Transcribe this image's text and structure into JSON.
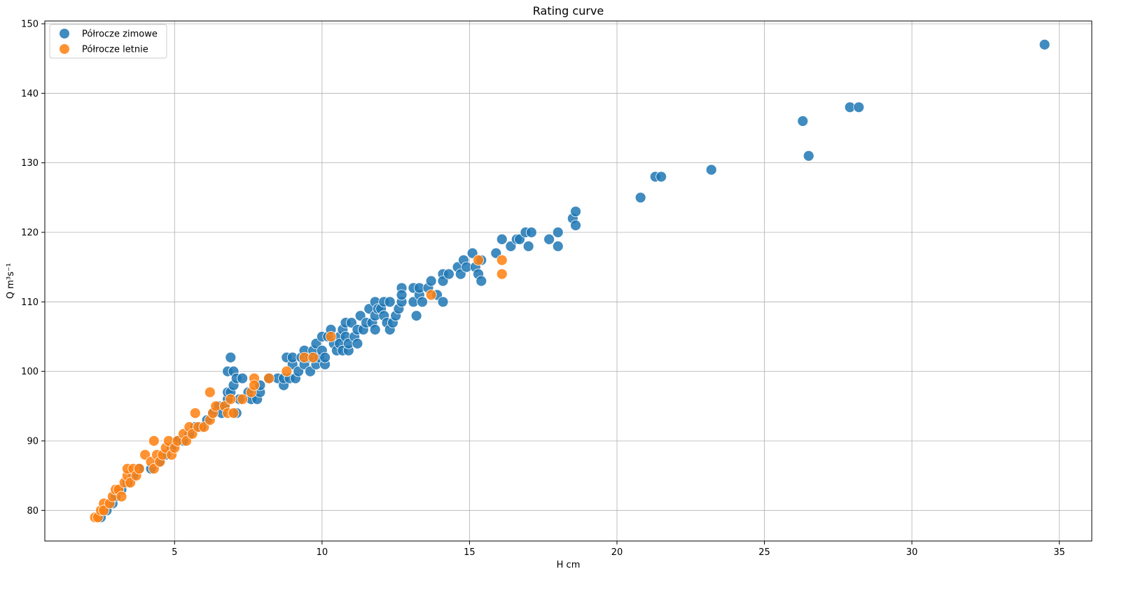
{
  "chart_data": {
    "type": "scatter",
    "title": "Rating curve",
    "xlabel": "H cm",
    "ylabel": "Q m³s⁻¹",
    "xlim": [
      0.6,
      36.1
    ],
    "ylim": [
      75.6,
      150.4
    ],
    "xticks": [
      5,
      10,
      15,
      20,
      25,
      30,
      35
    ],
    "yticks": [
      80,
      90,
      100,
      110,
      120,
      130,
      140,
      150
    ],
    "grid": true,
    "legend_position": "top-left",
    "series": [
      {
        "name": "Półrocze zimowe",
        "color": "#1f77b4",
        "points": [
          [
            2.5,
            79
          ],
          [
            2.7,
            80
          ],
          [
            2.9,
            81
          ],
          [
            3.0,
            82
          ],
          [
            3.2,
            83
          ],
          [
            3.4,
            84
          ],
          [
            3.6,
            85
          ],
          [
            3.8,
            86
          ],
          [
            4.2,
            86
          ],
          [
            4.5,
            87
          ],
          [
            4.7,
            88
          ],
          [
            4.9,
            89
          ],
          [
            5.1,
            90
          ],
          [
            5.3,
            90
          ],
          [
            5.5,
            91
          ],
          [
            5.7,
            92
          ],
          [
            5.9,
            92
          ],
          [
            6.1,
            93
          ],
          [
            6.3,
            94
          ],
          [
            6.5,
            95
          ],
          [
            6.6,
            94
          ],
          [
            6.7,
            95
          ],
          [
            6.8,
            96
          ],
          [
            6.8,
            97
          ],
          [
            6.8,
            100
          ],
          [
            6.9,
            97
          ],
          [
            6.9,
            102
          ],
          [
            7.0,
            100
          ],
          [
            7.0,
            98
          ],
          [
            7.1,
            99
          ],
          [
            7.1,
            94
          ],
          [
            7.2,
            96
          ],
          [
            7.3,
            99
          ],
          [
            7.5,
            97
          ],
          [
            7.6,
            96
          ],
          [
            7.8,
            96
          ],
          [
            7.9,
            97
          ],
          [
            7.9,
            98
          ],
          [
            8.2,
            99
          ],
          [
            8.5,
            99
          ],
          [
            8.7,
            98
          ],
          [
            8.7,
            99
          ],
          [
            8.8,
            102
          ],
          [
            8.9,
            99
          ],
          [
            9.0,
            101
          ],
          [
            9.0,
            102
          ],
          [
            9.1,
            99
          ],
          [
            9.2,
            100
          ],
          [
            9.3,
            102
          ],
          [
            9.4,
            103
          ],
          [
            9.4,
            101
          ],
          [
            9.6,
            100
          ],
          [
            9.6,
            102
          ],
          [
            9.7,
            103
          ],
          [
            9.8,
            101
          ],
          [
            9.8,
            104
          ],
          [
            9.9,
            102
          ],
          [
            10.0,
            103
          ],
          [
            10.0,
            105
          ],
          [
            10.1,
            101
          ],
          [
            10.1,
            102
          ],
          [
            10.2,
            105
          ],
          [
            10.3,
            106
          ],
          [
            10.4,
            104
          ],
          [
            10.5,
            103
          ],
          [
            10.6,
            105
          ],
          [
            10.6,
            104
          ],
          [
            10.7,
            106
          ],
          [
            10.7,
            103
          ],
          [
            10.8,
            105
          ],
          [
            10.8,
            107
          ],
          [
            10.9,
            103
          ],
          [
            10.9,
            104
          ],
          [
            11.0,
            107
          ],
          [
            11.1,
            105
          ],
          [
            11.2,
            106
          ],
          [
            11.2,
            104
          ],
          [
            11.3,
            108
          ],
          [
            11.4,
            106
          ],
          [
            11.5,
            107
          ],
          [
            11.6,
            109
          ],
          [
            11.7,
            107
          ],
          [
            11.8,
            110
          ],
          [
            11.8,
            108
          ],
          [
            11.8,
            106
          ],
          [
            11.9,
            109
          ],
          [
            12.0,
            109
          ],
          [
            12.1,
            110
          ],
          [
            12.1,
            108
          ],
          [
            12.2,
            107
          ],
          [
            12.3,
            110
          ],
          [
            12.3,
            106
          ],
          [
            12.4,
            107
          ],
          [
            12.5,
            108
          ],
          [
            12.6,
            109
          ],
          [
            12.7,
            112
          ],
          [
            12.7,
            110
          ],
          [
            12.7,
            111
          ],
          [
            13.1,
            110
          ],
          [
            13.1,
            112
          ],
          [
            13.2,
            108
          ],
          [
            13.3,
            111
          ],
          [
            13.3,
            112
          ],
          [
            13.4,
            110
          ],
          [
            13.6,
            112
          ],
          [
            13.7,
            113
          ],
          [
            13.9,
            111
          ],
          [
            14.1,
            114
          ],
          [
            14.1,
            110
          ],
          [
            14.1,
            113
          ],
          [
            14.3,
            114
          ],
          [
            14.6,
            115
          ],
          [
            14.7,
            114
          ],
          [
            14.8,
            116
          ],
          [
            14.9,
            115
          ],
          [
            15.1,
            117
          ],
          [
            15.2,
            115
          ],
          [
            15.3,
            114
          ],
          [
            15.4,
            116
          ],
          [
            15.4,
            113
          ],
          [
            15.9,
            117
          ],
          [
            16.1,
            119
          ],
          [
            16.4,
            118
          ],
          [
            16.6,
            119
          ],
          [
            16.7,
            119
          ],
          [
            16.9,
            120
          ],
          [
            17.0,
            118
          ],
          [
            17.1,
            120
          ],
          [
            17.7,
            119
          ],
          [
            18.0,
            120
          ],
          [
            18.0,
            118
          ],
          [
            18.5,
            122
          ],
          [
            18.6,
            123
          ],
          [
            18.6,
            121
          ],
          [
            20.8,
            125
          ],
          [
            21.3,
            128
          ],
          [
            21.5,
            128
          ],
          [
            23.2,
            129
          ],
          [
            26.3,
            136
          ],
          [
            26.5,
            131
          ],
          [
            27.9,
            138
          ],
          [
            28.2,
            138
          ],
          [
            34.5,
            147
          ]
        ]
      },
      {
        "name": "Półrocze letnie",
        "color": "#ff7f0e",
        "points": [
          [
            2.3,
            79
          ],
          [
            2.4,
            79
          ],
          [
            2.5,
            80
          ],
          [
            2.6,
            81
          ],
          [
            2.6,
            80
          ],
          [
            2.8,
            81
          ],
          [
            2.9,
            82
          ],
          [
            3.0,
            83
          ],
          [
            3.1,
            83
          ],
          [
            3.2,
            82
          ],
          [
            3.3,
            84
          ],
          [
            3.4,
            85
          ],
          [
            3.4,
            86
          ],
          [
            3.5,
            84
          ],
          [
            3.6,
            86
          ],
          [
            3.7,
            85
          ],
          [
            3.8,
            86
          ],
          [
            4.0,
            88
          ],
          [
            4.2,
            87
          ],
          [
            4.3,
            90
          ],
          [
            4.3,
            86
          ],
          [
            4.4,
            88
          ],
          [
            4.5,
            87
          ],
          [
            4.6,
            88
          ],
          [
            4.7,
            89
          ],
          [
            4.8,
            90
          ],
          [
            4.9,
            88
          ],
          [
            5.0,
            89
          ],
          [
            5.1,
            90
          ],
          [
            5.3,
            91
          ],
          [
            5.4,
            90
          ],
          [
            5.5,
            92
          ],
          [
            5.6,
            91
          ],
          [
            5.7,
            94
          ],
          [
            5.8,
            92
          ],
          [
            6.0,
            92
          ],
          [
            6.2,
            93
          ],
          [
            6.2,
            97
          ],
          [
            6.3,
            94
          ],
          [
            6.4,
            95
          ],
          [
            6.7,
            95
          ],
          [
            6.8,
            94
          ],
          [
            6.9,
            96
          ],
          [
            7.0,
            94
          ],
          [
            7.3,
            96
          ],
          [
            7.6,
            97
          ],
          [
            7.7,
            99
          ],
          [
            7.7,
            98
          ],
          [
            8.2,
            99
          ],
          [
            8.8,
            100
          ],
          [
            9.4,
            102
          ],
          [
            9.7,
            102
          ],
          [
            10.3,
            105
          ],
          [
            13.7,
            111
          ],
          [
            15.3,
            116
          ],
          [
            16.1,
            116
          ],
          [
            16.1,
            114
          ]
        ]
      }
    ]
  }
}
